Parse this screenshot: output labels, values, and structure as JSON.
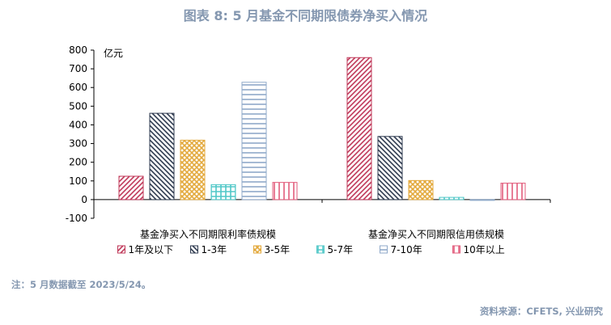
{
  "header": {
    "title": "图表 8:  5 月基金不同期限债券净买入情况"
  },
  "footer": {
    "note": "注：5 月数据截至 2023/5/24。",
    "source": "资料来源：CFETS, 兴业研究"
  },
  "chart_data": {
    "type": "bar",
    "unit_label": "亿元",
    "ylim": [
      -100,
      800
    ],
    "yticks": [
      -100,
      0,
      100,
      200,
      300,
      400,
      500,
      600,
      700,
      800
    ],
    "categories": [
      "基金净买入不同期限利率债规模",
      "基金净买入不同期限信用债规模"
    ],
    "series": [
      {
        "name": "1年及以下",
        "color": "#c0395a",
        "pattern": "diag-right",
        "values": [
          125,
          760
        ]
      },
      {
        "name": "1-3年",
        "color": "#2f3b50",
        "pattern": "diag-left",
        "values": [
          462,
          338
        ]
      },
      {
        "name": "3-5年",
        "color": "#e3a93c",
        "pattern": "cross",
        "values": [
          318,
          102
        ]
      },
      {
        "name": "5-7年",
        "color": "#4fc7c7",
        "pattern": "grid",
        "values": [
          80,
          12
        ]
      },
      {
        "name": "7-10年",
        "color": "#8fa9c9",
        "pattern": "horizontal",
        "values": [
          628,
          -2
        ]
      },
      {
        "name": "10年以上",
        "color": "#e25c7c",
        "pattern": "vertical",
        "values": [
          92,
          88
        ]
      }
    ],
    "legend_position": "bottom",
    "grid": false
  }
}
